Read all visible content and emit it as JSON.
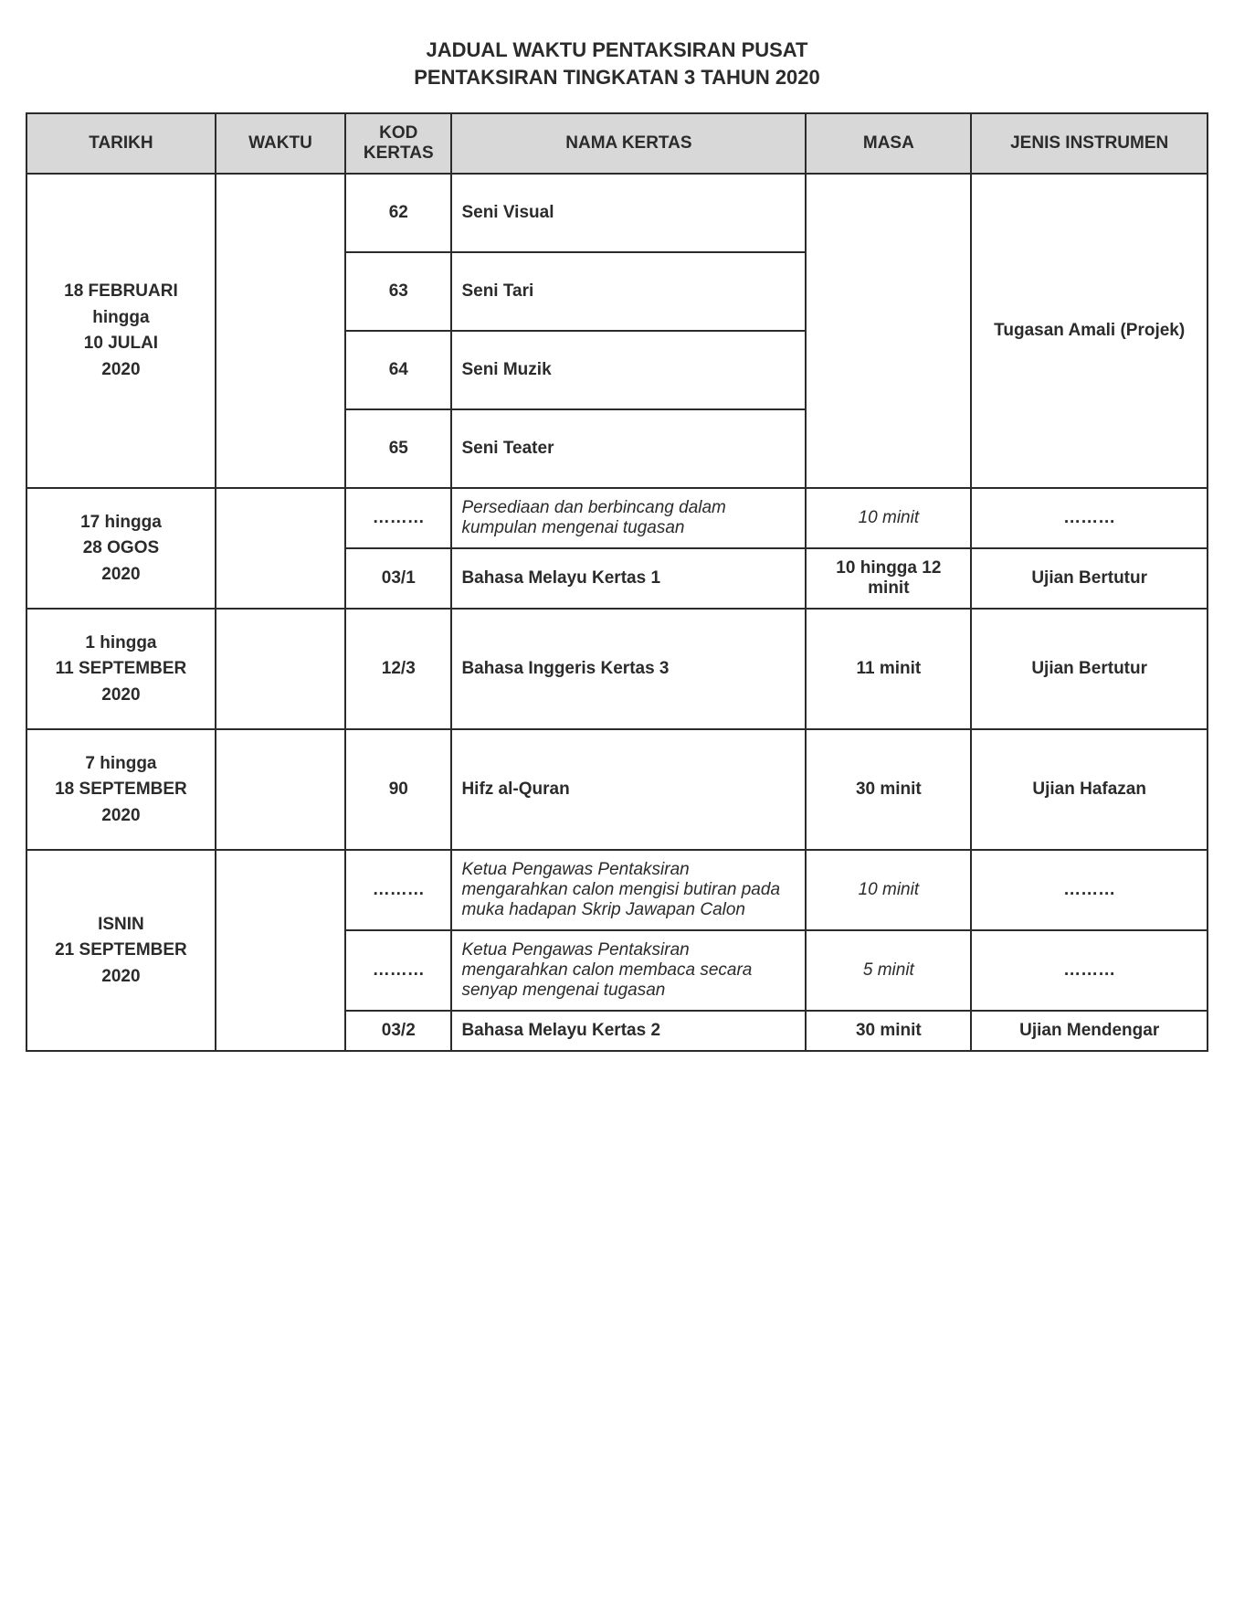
{
  "title_line1": "JADUAL WAKTU PENTAKSIRAN PUSAT",
  "title_line2": "PENTAKSIRAN TINGKATAN 3 TAHUN 2020",
  "headers": {
    "tarikh": "TARIKH",
    "waktu": "WAKTU",
    "kod": "KOD KERTAS",
    "nama": "NAMA KERTAS",
    "masa": "MASA",
    "jenis": "JENIS INSTRUMEN"
  },
  "rows": {
    "g1_tarikh": "18 FEBRUARI\nhingga\n10 JULAI\n2020",
    "g1_jenis": "Tugasan Amali (Projek)",
    "g1_r1_kod": "62",
    "g1_r1_nama": "Seni Visual",
    "g1_r2_kod": "63",
    "g1_r2_nama": "Seni Tari",
    "g1_r3_kod": "64",
    "g1_r3_nama": "Seni Muzik",
    "g1_r4_kod": "65",
    "g1_r4_nama": "Seni Teater",
    "g2_tarikh": "17 hingga\n28 OGOS\n2020",
    "g2_r1_kod": "………",
    "g2_r1_nama": "Persediaan dan berbincang dalam kumpulan mengenai tugasan",
    "g2_r1_masa": "10 minit",
    "g2_r1_jenis": "………",
    "g2_r2_kod": "03/1",
    "g2_r2_nama": "Bahasa Melayu Kertas 1",
    "g2_r2_masa": "10 hingga 12 minit",
    "g2_r2_jenis": "Ujian  Bertutur",
    "g3_tarikh": "1 hingga\n11 SEPTEMBER\n2020",
    "g3_kod": "12/3",
    "g3_nama": "Bahasa Inggeris Kertas 3",
    "g3_masa": "11 minit",
    "g3_jenis": "Ujian  Bertutur",
    "g4_tarikh": "7 hingga\n18 SEPTEMBER\n2020",
    "g4_kod": "90",
    "g4_nama": "Hifz al-Quran",
    "g4_masa": "30 minit",
    "g4_jenis": "Ujian Hafazan",
    "g5_tarikh": "ISNIN\n21 SEPTEMBER\n2020",
    "g5_r1_kod": "………",
    "g5_r1_nama": "Ketua Pengawas Pentaksiran mengarahkan calon mengisi butiran pada muka hadapan Skrip Jawapan Calon",
    "g5_r1_masa": "10 minit",
    "g5_r1_jenis": "………",
    "g5_r2_kod": "………",
    "g5_r2_nama": "Ketua Pengawas Pentaksiran mengarahkan calon membaca secara senyap mengenai tugasan",
    "g5_r2_masa": "5 minit",
    "g5_r2_jenis": "………",
    "g5_r3_kod": "03/2",
    "g5_r3_nama": "Bahasa Melayu Kertas 2",
    "g5_r3_masa": "30 minit",
    "g5_r3_jenis": "Ujian Mendengar"
  },
  "styling": {
    "header_bg": "#d8d8d8",
    "border_color": "#2b2b2b",
    "text_color": "#2b2b2b",
    "font_family": "Arial",
    "title_fontsize_pt": 17,
    "body_fontsize_pt": 14
  }
}
